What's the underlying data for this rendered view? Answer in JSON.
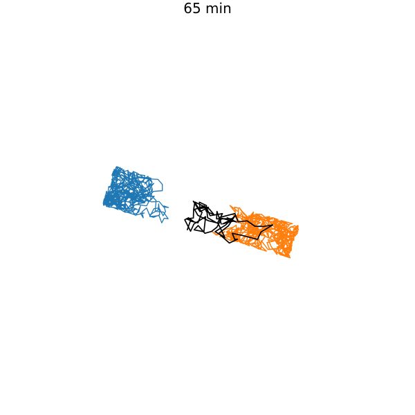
{
  "figure": {
    "title": "65 min"
  },
  "colors": {
    "series_a": "#1f77b4",
    "series_b": "#ff7f0e",
    "series_c": "#000000"
  }
}
